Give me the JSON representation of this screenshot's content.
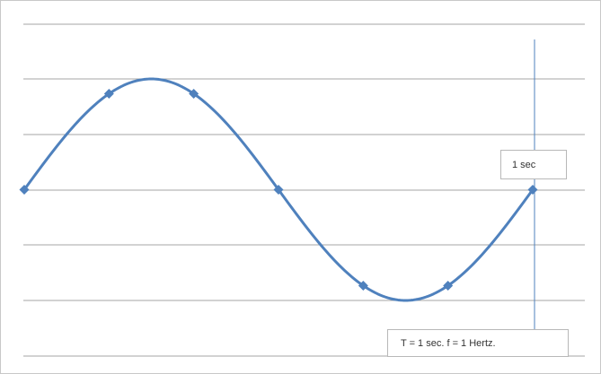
{
  "chart_data": {
    "type": "line",
    "title": "",
    "xlabel": "",
    "ylabel": "",
    "xlim": [
      0,
      1.0
    ],
    "ylim": [
      -1.0,
      1.0
    ],
    "grid": true,
    "series": [
      {
        "color": "#4f81bd",
        "x": [
          0,
          0.1667,
          0.3333,
          0.5,
          0.6667,
          0.8333,
          1.0
        ],
        "y": [
          0,
          0.866,
          0.866,
          0,
          -0.866,
          -0.866,
          0
        ]
      }
    ],
    "annotations": [
      {
        "text": "1 sec"
      },
      {
        "text": "T = 1 sec.  f = 1 Hertz."
      }
    ]
  }
}
